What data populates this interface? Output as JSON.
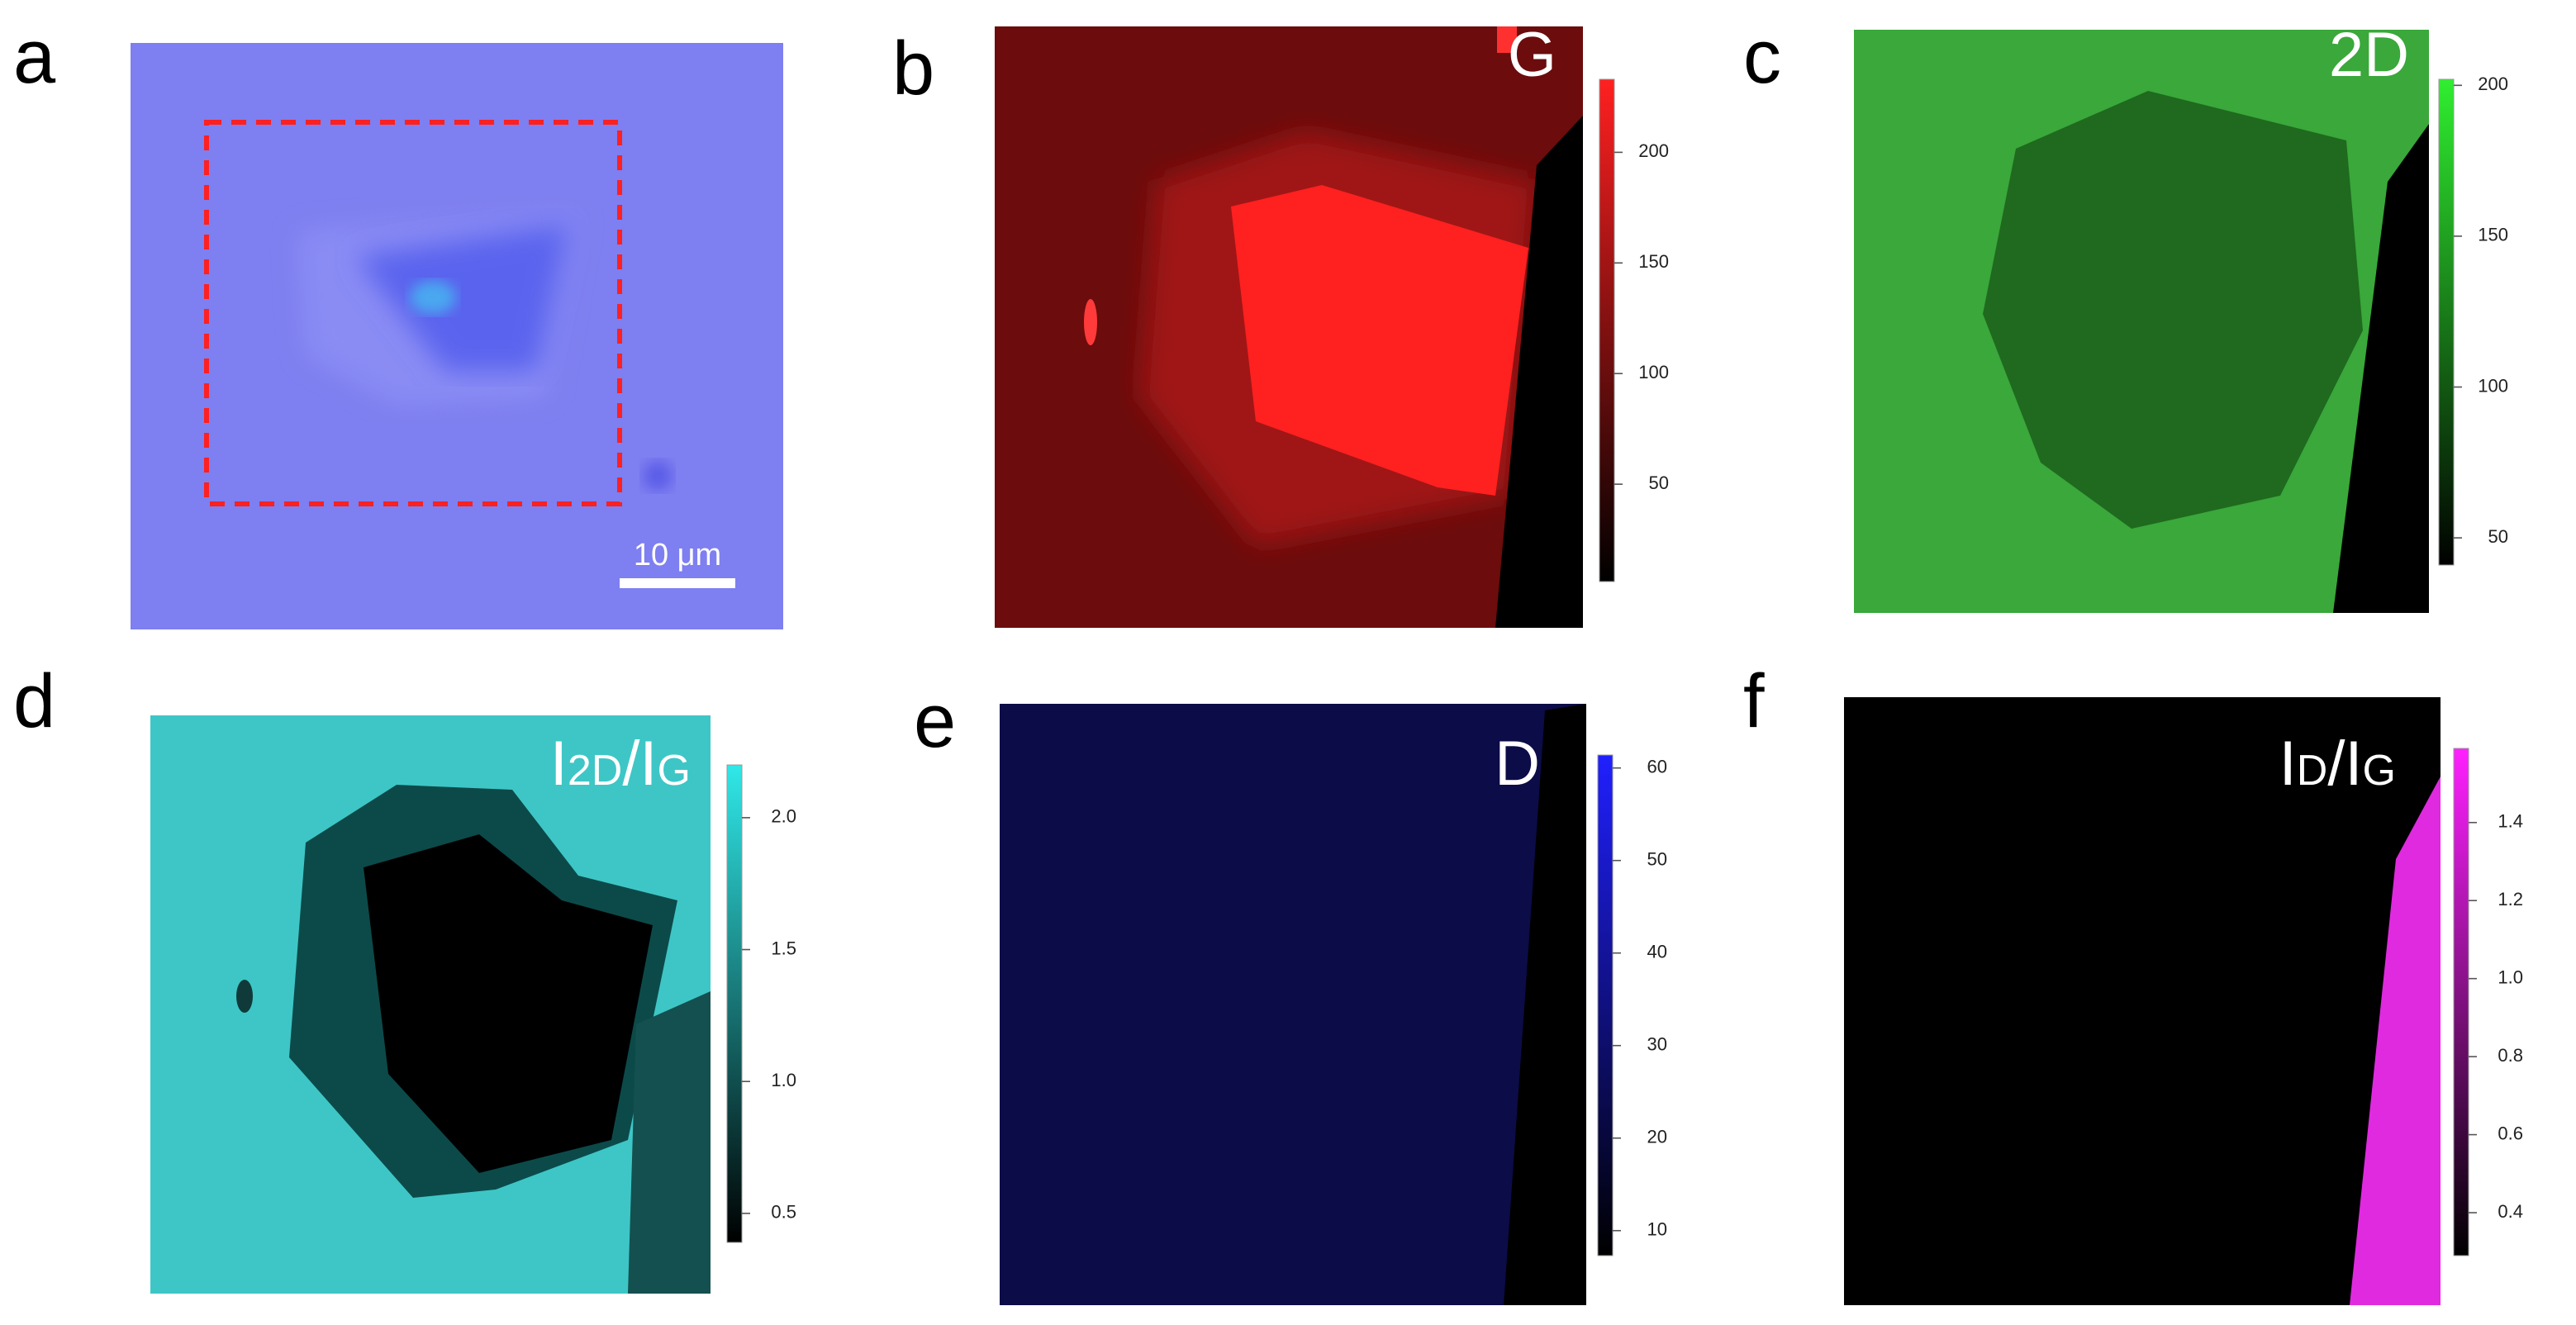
{
  "panels": [
    {
      "label": "a",
      "scale_bar": "10 μm"
    },
    {
      "label": "b",
      "title_parts": [
        "G"
      ],
      "colorbar": {
        "color": "#ff2020",
        "lim": [
          6,
          233
        ],
        "ticks": [
          50,
          100,
          150,
          200
        ]
      }
    },
    {
      "label": "c",
      "title_parts": [
        "2D"
      ],
      "colorbar": {
        "color": "#30ee30",
        "lim": [
          41,
          202
        ],
        "ticks": [
          50,
          100,
          150,
          200
        ]
      }
    },
    {
      "label": "d",
      "title_parts": [
        "I",
        "2D",
        "/I",
        "G"
      ],
      "colorbar": {
        "color": "#30e8e8",
        "lim": [
          0.39,
          2.2
        ],
        "ticks": [
          0.5,
          {
            "value": 1,
            "label": "1.0"
          },
          1.5,
          {
            "value": 2,
            "label": "2.0"
          }
        ]
      }
    },
    {
      "label": "e",
      "title_parts": [
        "D"
      ],
      "colorbar": {
        "color": "#2020ff",
        "lim": [
          7.3,
          61.4
        ],
        "ticks": [
          10,
          20,
          30,
          40,
          50,
          60
        ]
      }
    },
    {
      "label": "f",
      "title_parts": [
        "I",
        "D",
        "/I",
        "G"
      ],
      "colorbar": {
        "color": "#ff20ff",
        "lim": [
          0.29,
          1.59
        ],
        "ticks": [
          0.4,
          0.6,
          0.8,
          {
            "value": 1,
            "label": "1.0"
          },
          1.2,
          1.4
        ]
      }
    }
  ]
}
